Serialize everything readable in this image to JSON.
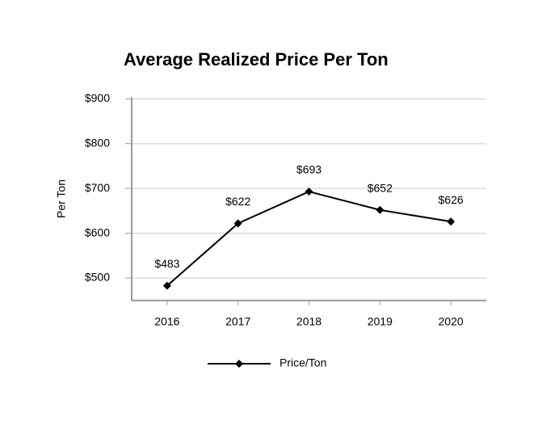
{
  "chart_data": {
    "type": "line",
    "title": "Average Realized Price Per Ton",
    "y_label": "Per Ton",
    "categories": [
      "2016",
      "2017",
      "2018",
      "2019",
      "2020"
    ],
    "series": [
      {
        "name": "Price/Ton",
        "color": "#000000",
        "values": [
          483,
          622,
          693,
          652,
          626
        ],
        "value_labels": [
          "$483",
          "$622",
          "$693",
          "$652",
          "$626"
        ]
      }
    ],
    "ylim": [
      450,
      900
    ],
    "yticks": [
      {
        "value": 500,
        "label": "$500"
      },
      {
        "value": 600,
        "label": "$600"
      },
      {
        "value": 700,
        "label": "$700"
      },
      {
        "value": 800,
        "label": "$800"
      },
      {
        "value": 900,
        "label": "$900"
      }
    ],
    "grid": true,
    "legend": "bottom"
  }
}
